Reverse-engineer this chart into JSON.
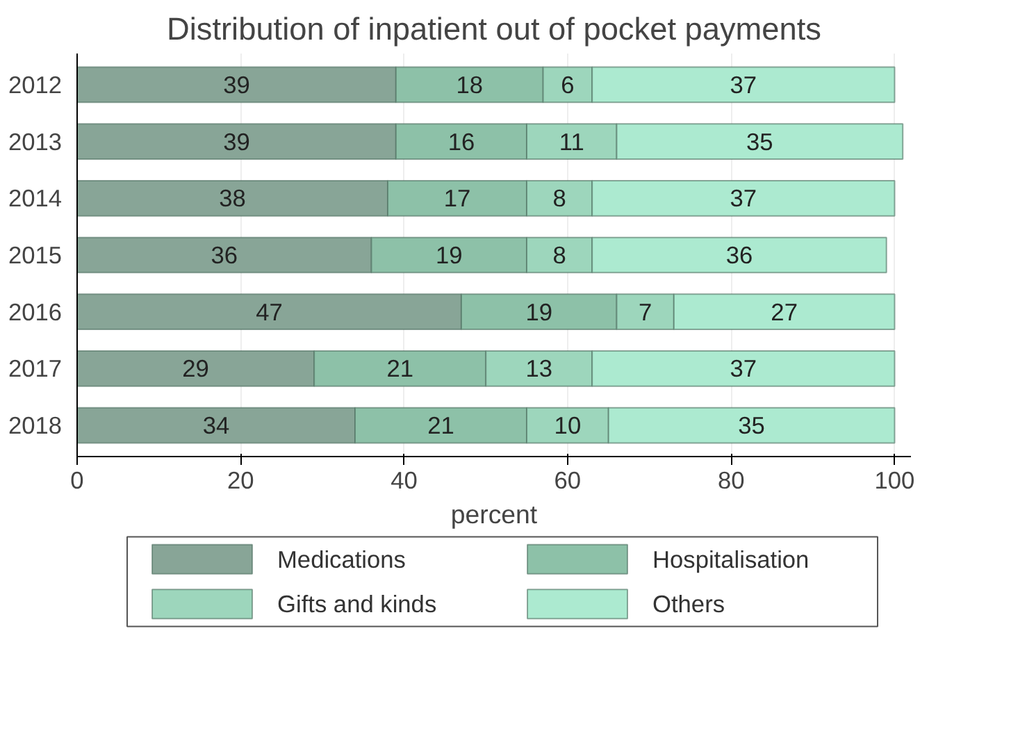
{
  "chart_data": {
    "type": "bar",
    "orientation": "horizontal",
    "stacked": true,
    "title": "Distribution of inpatient out of pocket payments",
    "xlabel": "percent",
    "categories": [
      "2012",
      "2013",
      "2014",
      "2015",
      "2016",
      "2017",
      "2018"
    ],
    "series": [
      {
        "name": "Medications",
        "color": "#88a597",
        "values": [
          39,
          39,
          38,
          36,
          47,
          29,
          34
        ]
      },
      {
        "name": "Hospitalisation",
        "color": "#8dc1a8",
        "values": [
          18,
          16,
          17,
          19,
          19,
          21,
          21
        ]
      },
      {
        "name": "Gifts and kinds",
        "color": "#9dd6bc",
        "values": [
          6,
          11,
          8,
          8,
          7,
          13,
          10
        ]
      },
      {
        "name": "Others",
        "color": "#acead0",
        "values": [
          37,
          35,
          37,
          36,
          27,
          37,
          35
        ]
      }
    ],
    "xlim": [
      0,
      102
    ],
    "xticks": [
      0,
      20,
      40,
      60,
      80,
      100
    ],
    "grid": "x",
    "legend": "bottom",
    "data_labels": true
  }
}
